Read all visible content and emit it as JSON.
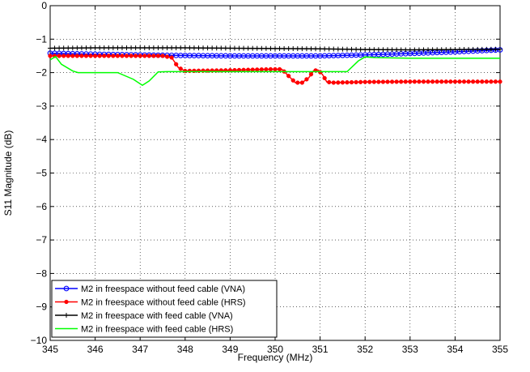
{
  "chart_data": {
    "type": "line",
    "title": "",
    "xlabel": "Frequency (MHz)",
    "ylabel": "S11 Magnitude (dB)",
    "xlim": [
      345,
      355
    ],
    "ylim": [
      -10,
      0
    ],
    "xticks": [
      345,
      346,
      347,
      348,
      349,
      350,
      351,
      352,
      353,
      354,
      355
    ],
    "yticks": [
      0,
      -1,
      -2,
      -3,
      -4,
      -5,
      -6,
      -7,
      -8,
      -9,
      -10
    ],
    "xtick_labels": [
      "345",
      "346",
      "347",
      "348",
      "349",
      "350",
      "351",
      "352",
      "353",
      "354",
      "355"
    ],
    "ytick_labels": [
      "0",
      "−1",
      "−2",
      "−3",
      "−4",
      "−5",
      "−6",
      "−7",
      "−8",
      "−9",
      "−10"
    ],
    "grid": true,
    "legend_position": "bottom-left",
    "series": [
      {
        "name": "M2 in freespace without feed cable (VNA)",
        "color": "#0000ff",
        "marker": "circle",
        "x": [
          345,
          346,
          347,
          348,
          349,
          350,
          351,
          352,
          353,
          354,
          354.5,
          355
        ],
        "y": [
          -1.42,
          -1.45,
          -1.47,
          -1.49,
          -1.5,
          -1.5,
          -1.5,
          -1.47,
          -1.43,
          -1.38,
          -1.35,
          -1.32
        ]
      },
      {
        "name": "M2 in freespace without feed cable (HRS)",
        "color": "#ff0000",
        "marker": "dot",
        "x": [
          345,
          346,
          347,
          347.5,
          347.7,
          347.85,
          348,
          349,
          349.9,
          350.15,
          350.3,
          350.45,
          350.6,
          350.75,
          350.85,
          350.95,
          351.05,
          351.15,
          351.3,
          352,
          353,
          354,
          355
        ],
        "y": [
          -1.5,
          -1.5,
          -1.5,
          -1.5,
          -1.55,
          -1.85,
          -1.95,
          -1.93,
          -1.9,
          -1.9,
          -2.1,
          -2.3,
          -2.3,
          -2.15,
          -1.95,
          -1.92,
          -2.05,
          -2.28,
          -2.3,
          -2.28,
          -2.27,
          -2.27,
          -2.27
        ]
      },
      {
        "name": "M2 in freespace with feed cable (VNA)",
        "color": "#000000",
        "marker": "plus",
        "x": [
          345,
          346,
          347,
          348,
          349,
          350,
          351,
          352,
          353,
          354,
          355
        ],
        "y": [
          -1.27,
          -1.26,
          -1.26,
          -1.26,
          -1.27,
          -1.28,
          -1.29,
          -1.31,
          -1.32,
          -1.31,
          -1.3
        ]
      },
      {
        "name": "M2 in freespace with feed cable (HRS)",
        "color": "#00ff00",
        "marker": "none",
        "x": [
          345,
          345.12,
          345.25,
          345.5,
          345.62,
          346,
          346.5,
          346.85,
          347.05,
          347.2,
          347.4,
          347.6,
          348,
          349,
          350,
          351,
          351.4,
          351.6,
          351.85,
          352,
          352.2,
          353,
          354,
          355
        ],
        "y": [
          -1.62,
          -1.52,
          -1.75,
          -1.95,
          -2.0,
          -2.0,
          -2.0,
          -2.2,
          -2.38,
          -2.25,
          -1.98,
          -1.97,
          -1.97,
          -1.97,
          -1.97,
          -1.97,
          -1.97,
          -1.97,
          -1.65,
          -1.53,
          -1.55,
          -1.57,
          -1.57,
          -1.57
        ]
      }
    ]
  }
}
